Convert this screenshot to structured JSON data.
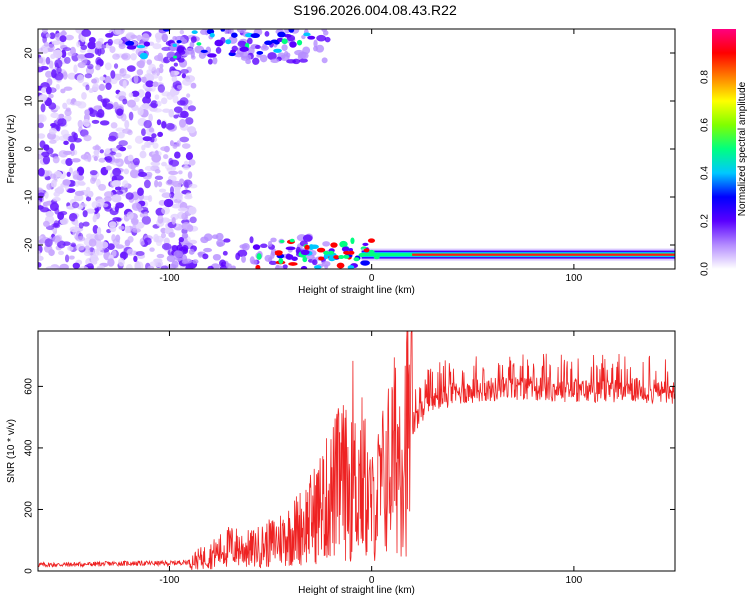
{
  "title": "S196.2026.004.08.43.R22",
  "chart_data": [
    {
      "type": "heatmap",
      "xlabel": "Height of straight line (km)",
      "ylabel": "Frequency (Hz)",
      "xlim": [
        -165,
        150
      ],
      "ylim": [
        -25,
        25
      ],
      "xticks": [
        -100,
        0,
        100
      ],
      "yticks": [
        -20,
        -10,
        0,
        10,
        20
      ],
      "grid": false,
      "colorbar": {
        "label": "Normalized spectral amplitude",
        "range": [
          0,
          1
        ],
        "ticks": [
          "0.0",
          "0.2",
          "0.4",
          "0.6",
          "0.8"
        ],
        "colors": [
          "#ffffff",
          "#b48cff",
          "#5a00ff",
          "#0000ff",
          "#00c8ff",
          "#00ff80",
          "#80ff00",
          "#ffff00",
          "#ff8000",
          "#ff0000",
          "#ff0080"
        ]
      },
      "features": [
        {
          "name": "carrier",
          "x_range": [
            -5,
            150
          ],
          "frequency": -22,
          "peak_amplitude": 1.0
        }
      ]
    },
    {
      "type": "line",
      "xlabel": "Height of straight line (km)",
      "ylabel": "SNR (10 * v/v)",
      "xlim": [
        -165,
        150
      ],
      "ylim": [
        0,
        780
      ],
      "xticks": [
        -100,
        0,
        100
      ],
      "yticks": [
        0,
        200,
        400,
        600
      ],
      "grid": false,
      "series": [
        {
          "color": "#ee2222",
          "x": [
            -165,
            -140,
            -120,
            -100,
            -90,
            -80,
            -70,
            -60,
            -50,
            -40,
            -30,
            -20,
            -15,
            -10,
            -5,
            0,
            5,
            10,
            15,
            20,
            25,
            30,
            40,
            50,
            60,
            70,
            80,
            90,
            100,
            110,
            120,
            130,
            140,
            150
          ],
          "y": [
            20,
            22,
            25,
            25,
            30,
            50,
            80,
            70,
            90,
            120,
            170,
            250,
            300,
            260,
            310,
            200,
            280,
            360,
            420,
            470,
            520,
            555,
            575,
            585,
            590,
            595,
            592,
            590,
            588,
            585,
            585,
            588,
            582,
            580
          ]
        }
      ]
    }
  ]
}
